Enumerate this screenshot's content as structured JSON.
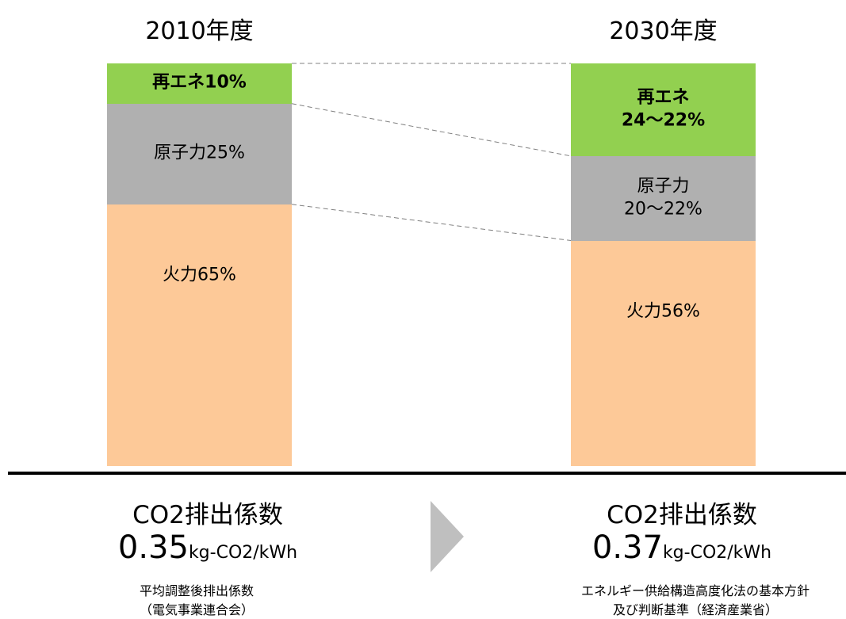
{
  "chart_data": {
    "type": "bar",
    "stacked": true,
    "categories": [
      "2010年度",
      "2030年度"
    ],
    "ylim": [
      0,
      100
    ],
    "series": [
      {
        "color": "#fdc998",
        "values": [
          65,
          56
        ],
        "value_labels": [
          "火力65%",
          "火力56%"
        ],
        "bold": false
      },
      {
        "color": "#b0b0b0",
        "values": [
          25,
          21
        ],
        "value_labels": [
          "原子力25%",
          "原子力\n20～22%"
        ],
        "bold": false
      },
      {
        "color": "#92d050",
        "values": [
          10,
          23
        ],
        "value_labels": [
          "再エネ10%",
          "再エネ\n24～22%"
        ],
        "bold": true
      }
    ],
    "emission": [
      {
        "label": "CO2排出係数",
        "value": 0.35,
        "unit": "kg-CO2/kWh",
        "source": "平均調整後排出係数\n（電気事業連合会）"
      },
      {
        "label": "CO2排出係数",
        "value": 0.37,
        "unit": "kg-CO2/kWh",
        "source": "エネルギー供給構造高度化法の基本方針\n及び判断基準（経済産業省）"
      }
    ]
  }
}
